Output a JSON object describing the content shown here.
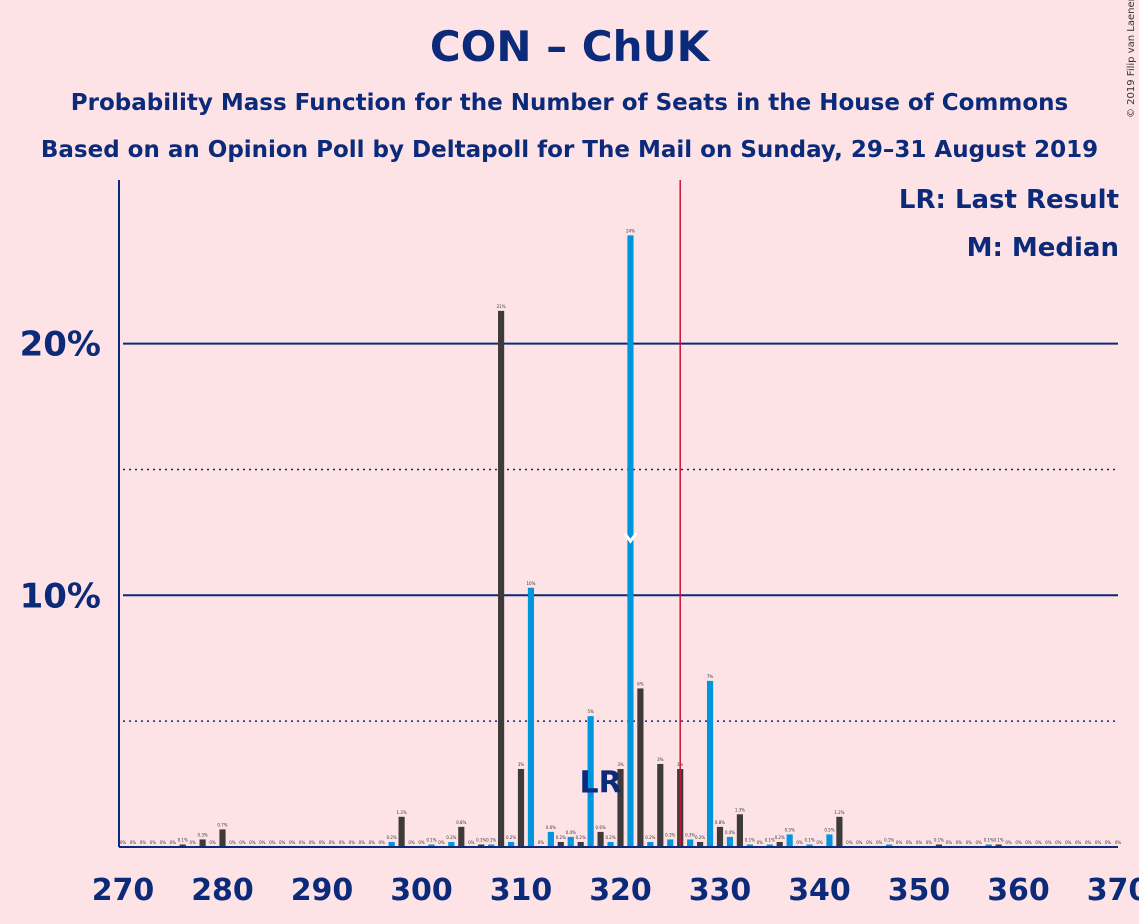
{
  "title": "CON – ChUK",
  "subtitle1": "Probability Mass Function for the Number of Seats in the House of Commons",
  "subtitle2": "Based on an Opinion Poll by Deltapoll for The Mail on Sunday, 29–31 August 2019",
  "credit": "© 2019 Filip van Laenen",
  "legend": {
    "lr": "LR: Last Result",
    "m": "M: Median"
  },
  "colors": {
    "background": "#fde3e6",
    "title": "#0b2a7a",
    "bar_dark": "#3f3a3a",
    "bar_blue": "#0096dd",
    "majority_line": "#cc1133"
  },
  "chart_data": {
    "type": "bar",
    "xlabel": "",
    "ylabel": "",
    "xlim": [
      270,
      370
    ],
    "ylim": [
      0,
      26.5
    ],
    "x_ticks": [
      "270",
      "280",
      "290",
      "300",
      "310",
      "320",
      "330",
      "340",
      "350",
      "360",
      "370"
    ],
    "y_ticks": [
      "10%",
      "20%"
    ],
    "grid": "solid at 10% and 20%, dotted at 5% and 15%",
    "majority_line": 326,
    "last_result": {
      "seat": 318,
      "label": "LR"
    },
    "median": {
      "seat": 320,
      "label": "M"
    },
    "bars": [
      {
        "seat": 270,
        "value": 0,
        "label": "0%"
      },
      {
        "seat": 271,
        "value": 0,
        "label": "0%"
      },
      {
        "seat": 272,
        "value": 0,
        "label": "0%"
      },
      {
        "seat": 273,
        "value": 0,
        "label": "0%"
      },
      {
        "seat": 274,
        "value": 0,
        "label": "0%"
      },
      {
        "seat": 275,
        "value": 0,
        "label": "0%"
      },
      {
        "seat": 276,
        "value": 0.1,
        "label": "0.1%"
      },
      {
        "seat": 277,
        "value": 0,
        "label": "0%"
      },
      {
        "seat": 278,
        "value": 0.3,
        "label": "0.3%"
      },
      {
        "seat": 279,
        "value": 0,
        "label": "0%"
      },
      {
        "seat": 280,
        "value": 0.7,
        "label": "0.7%"
      },
      {
        "seat": 281,
        "value": 0,
        "label": "0%"
      },
      {
        "seat": 282,
        "value": 0,
        "label": "0%"
      },
      {
        "seat": 283,
        "value": 0,
        "label": "0%"
      },
      {
        "seat": 284,
        "value": 0,
        "label": "0%"
      },
      {
        "seat": 285,
        "value": 0,
        "label": "0%"
      },
      {
        "seat": 286,
        "value": 0,
        "label": "0%"
      },
      {
        "seat": 287,
        "value": 0,
        "label": "0%"
      },
      {
        "seat": 288,
        "value": 0,
        "label": "0%"
      },
      {
        "seat": 289,
        "value": 0,
        "label": "0%"
      },
      {
        "seat": 290,
        "value": 0,
        "label": "0%"
      },
      {
        "seat": 291,
        "value": 0,
        "label": "0%"
      },
      {
        "seat": 292,
        "value": 0,
        "label": "0%"
      },
      {
        "seat": 293,
        "value": 0,
        "label": "0%"
      },
      {
        "seat": 294,
        "value": 0,
        "label": "0%"
      },
      {
        "seat": 295,
        "value": 0,
        "label": "0%"
      },
      {
        "seat": 296,
        "value": 0,
        "label": "0%"
      },
      {
        "seat": 297,
        "value": 0.2,
        "label": "0.2%"
      },
      {
        "seat": 298,
        "value": 1.2,
        "label": "1.2%"
      },
      {
        "seat": 299,
        "value": 0,
        "label": "0%"
      },
      {
        "seat": 300,
        "value": 0,
        "label": "0%"
      },
      {
        "seat": 301,
        "value": 0.1,
        "label": "0.1%"
      },
      {
        "seat": 302,
        "value": 0,
        "label": "0%"
      },
      {
        "seat": 303,
        "value": 0.2,
        "label": "0.2%"
      },
      {
        "seat": 304,
        "value": 0.8,
        "label": "0.8%"
      },
      {
        "seat": 305,
        "value": 0,
        "label": "0%"
      },
      {
        "seat": 306,
        "value": 0.1,
        "label": "0.1%"
      },
      {
        "seat": 307,
        "value": 0.1,
        "label": "0.1%"
      },
      {
        "seat": 308,
        "value": 21.3,
        "label": "21%"
      },
      {
        "seat": 309,
        "value": 0.2,
        "label": "0.2%"
      },
      {
        "seat": 310,
        "value": 3.1,
        "label": "3%"
      },
      {
        "seat": 311,
        "value": 10.3,
        "label": "10%"
      },
      {
        "seat": 312,
        "value": 0,
        "label": "0%"
      },
      {
        "seat": 313,
        "value": 0.6,
        "label": "0.6%"
      },
      {
        "seat": 314,
        "value": 0.2,
        "label": "0.2%"
      },
      {
        "seat": 315,
        "value": 0.4,
        "label": "0.4%"
      },
      {
        "seat": 316,
        "value": 0.2,
        "label": "0.2%"
      },
      {
        "seat": 317,
        "value": 5.2,
        "label": "5%"
      },
      {
        "seat": 318,
        "value": 0.6,
        "label": "0.6%"
      },
      {
        "seat": 319,
        "value": 0.2,
        "label": "0.2%"
      },
      {
        "seat": 320,
        "value": 3.1,
        "label": "3%"
      },
      {
        "seat": 321,
        "value": 24.3,
        "label": "24%"
      },
      {
        "seat": 322,
        "value": 6.3,
        "label": "6%"
      },
      {
        "seat": 323,
        "value": 0.2,
        "label": "0.2%"
      },
      {
        "seat": 324,
        "value": 3.3,
        "label": "3%"
      },
      {
        "seat": 325,
        "value": 0.3,
        "label": "0.3%"
      },
      {
        "seat": 326,
        "value": 3.1,
        "label": "3%"
      },
      {
        "seat": 327,
        "value": 0.3,
        "label": "0.3%"
      },
      {
        "seat": 328,
        "value": 0.2,
        "label": "0.2%"
      },
      {
        "seat": 329,
        "value": 6.6,
        "label": "7%"
      },
      {
        "seat": 330,
        "value": 0.8,
        "label": "0.8%"
      },
      {
        "seat": 331,
        "value": 0.4,
        "label": "0.4%"
      },
      {
        "seat": 332,
        "value": 1.3,
        "label": "1.3%"
      },
      {
        "seat": 333,
        "value": 0.1,
        "label": "0.1%"
      },
      {
        "seat": 334,
        "value": 0,
        "label": "0%"
      },
      {
        "seat": 335,
        "value": 0.1,
        "label": "0.1%"
      },
      {
        "seat": 336,
        "value": 0.2,
        "label": "0.2%"
      },
      {
        "seat": 337,
        "value": 0.5,
        "label": "0.5%"
      },
      {
        "seat": 338,
        "value": 0,
        "label": "0%"
      },
      {
        "seat": 339,
        "value": 0.1,
        "label": "0.1%"
      },
      {
        "seat": 340,
        "value": 0,
        "label": "0%"
      },
      {
        "seat": 341,
        "value": 0.5,
        "label": "0.5%"
      },
      {
        "seat": 342,
        "value": 1.2,
        "label": "1.2%"
      },
      {
        "seat": 343,
        "value": 0,
        "label": "0%"
      },
      {
        "seat": 344,
        "value": 0,
        "label": "0%"
      },
      {
        "seat": 345,
        "value": 0,
        "label": "0%"
      },
      {
        "seat": 346,
        "value": 0,
        "label": "0%"
      },
      {
        "seat": 347,
        "value": 0.1,
        "label": "0.1%"
      },
      {
        "seat": 348,
        "value": 0,
        "label": "0%"
      },
      {
        "seat": 349,
        "value": 0,
        "label": "0%"
      },
      {
        "seat": 350,
        "value": 0,
        "label": "0%"
      },
      {
        "seat": 351,
        "value": 0,
        "label": "0%"
      },
      {
        "seat": 352,
        "value": 0.1,
        "label": "0.1%"
      },
      {
        "seat": 353,
        "value": 0,
        "label": "0%"
      },
      {
        "seat": 354,
        "value": 0,
        "label": "0%"
      },
      {
        "seat": 355,
        "value": 0,
        "label": "0%"
      },
      {
        "seat": 356,
        "value": 0,
        "label": "0%"
      },
      {
        "seat": 357,
        "value": 0.1,
        "label": "0.1%"
      },
      {
        "seat": 358,
        "value": 0.1,
        "label": "0.1%"
      },
      {
        "seat": 359,
        "value": 0,
        "label": "0%"
      },
      {
        "seat": 360,
        "value": 0,
        "label": "0%"
      },
      {
        "seat": 361,
        "value": 0,
        "label": "0%"
      },
      {
        "seat": 362,
        "value": 0,
        "label": "0%"
      },
      {
        "seat": 363,
        "value": 0,
        "label": "0%"
      },
      {
        "seat": 364,
        "value": 0,
        "label": "0%"
      },
      {
        "seat": 365,
        "value": 0,
        "label": "0%"
      },
      {
        "seat": 366,
        "value": 0,
        "label": "0%"
      },
      {
        "seat": 367,
        "value": 0,
        "label": "0%"
      },
      {
        "seat": 368,
        "value": 0,
        "label": "0%"
      },
      {
        "seat": 369,
        "value": 0,
        "label": "0%"
      },
      {
        "seat": 370,
        "value": 0,
        "label": "0%"
      }
    ]
  }
}
